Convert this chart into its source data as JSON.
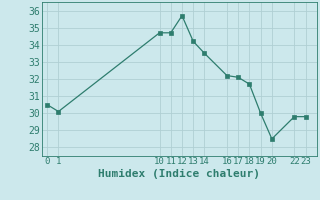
{
  "x": [
    0,
    1,
    10,
    11,
    12,
    13,
    14,
    16,
    17,
    18,
    19,
    20,
    22,
    23
  ],
  "y": [
    30.5,
    30.1,
    34.7,
    34.7,
    35.7,
    34.2,
    33.5,
    32.2,
    32.1,
    31.7,
    30.0,
    28.5,
    29.8,
    29.8
  ],
  "xticks": [
    0,
    1,
    10,
    11,
    12,
    13,
    14,
    16,
    17,
    18,
    19,
    20,
    22,
    23
  ],
  "xtick_labels": [
    "0",
    "1",
    "10",
    "11",
    "12",
    "13",
    "14",
    "16",
    "17",
    "18",
    "19",
    "20",
    "22",
    "23"
  ],
  "yticks": [
    28,
    29,
    30,
    31,
    32,
    33,
    34,
    35,
    36
  ],
  "ylim": [
    27.5,
    36.5
  ],
  "xlim": [
    -0.5,
    24.0
  ],
  "xlabel": "Humidex (Indice chaleur)",
  "line_color": "#2e7d6e",
  "marker": "s",
  "marker_size": 2.5,
  "bg_color": "#cce8ec",
  "grid_color": "#b0cfd4",
  "tick_color": "#2e7d6e",
  "label_color": "#2e7d6e",
  "xlabel_fontsize": 8,
  "ytick_fontsize": 7,
  "xtick_fontsize": 6.5
}
